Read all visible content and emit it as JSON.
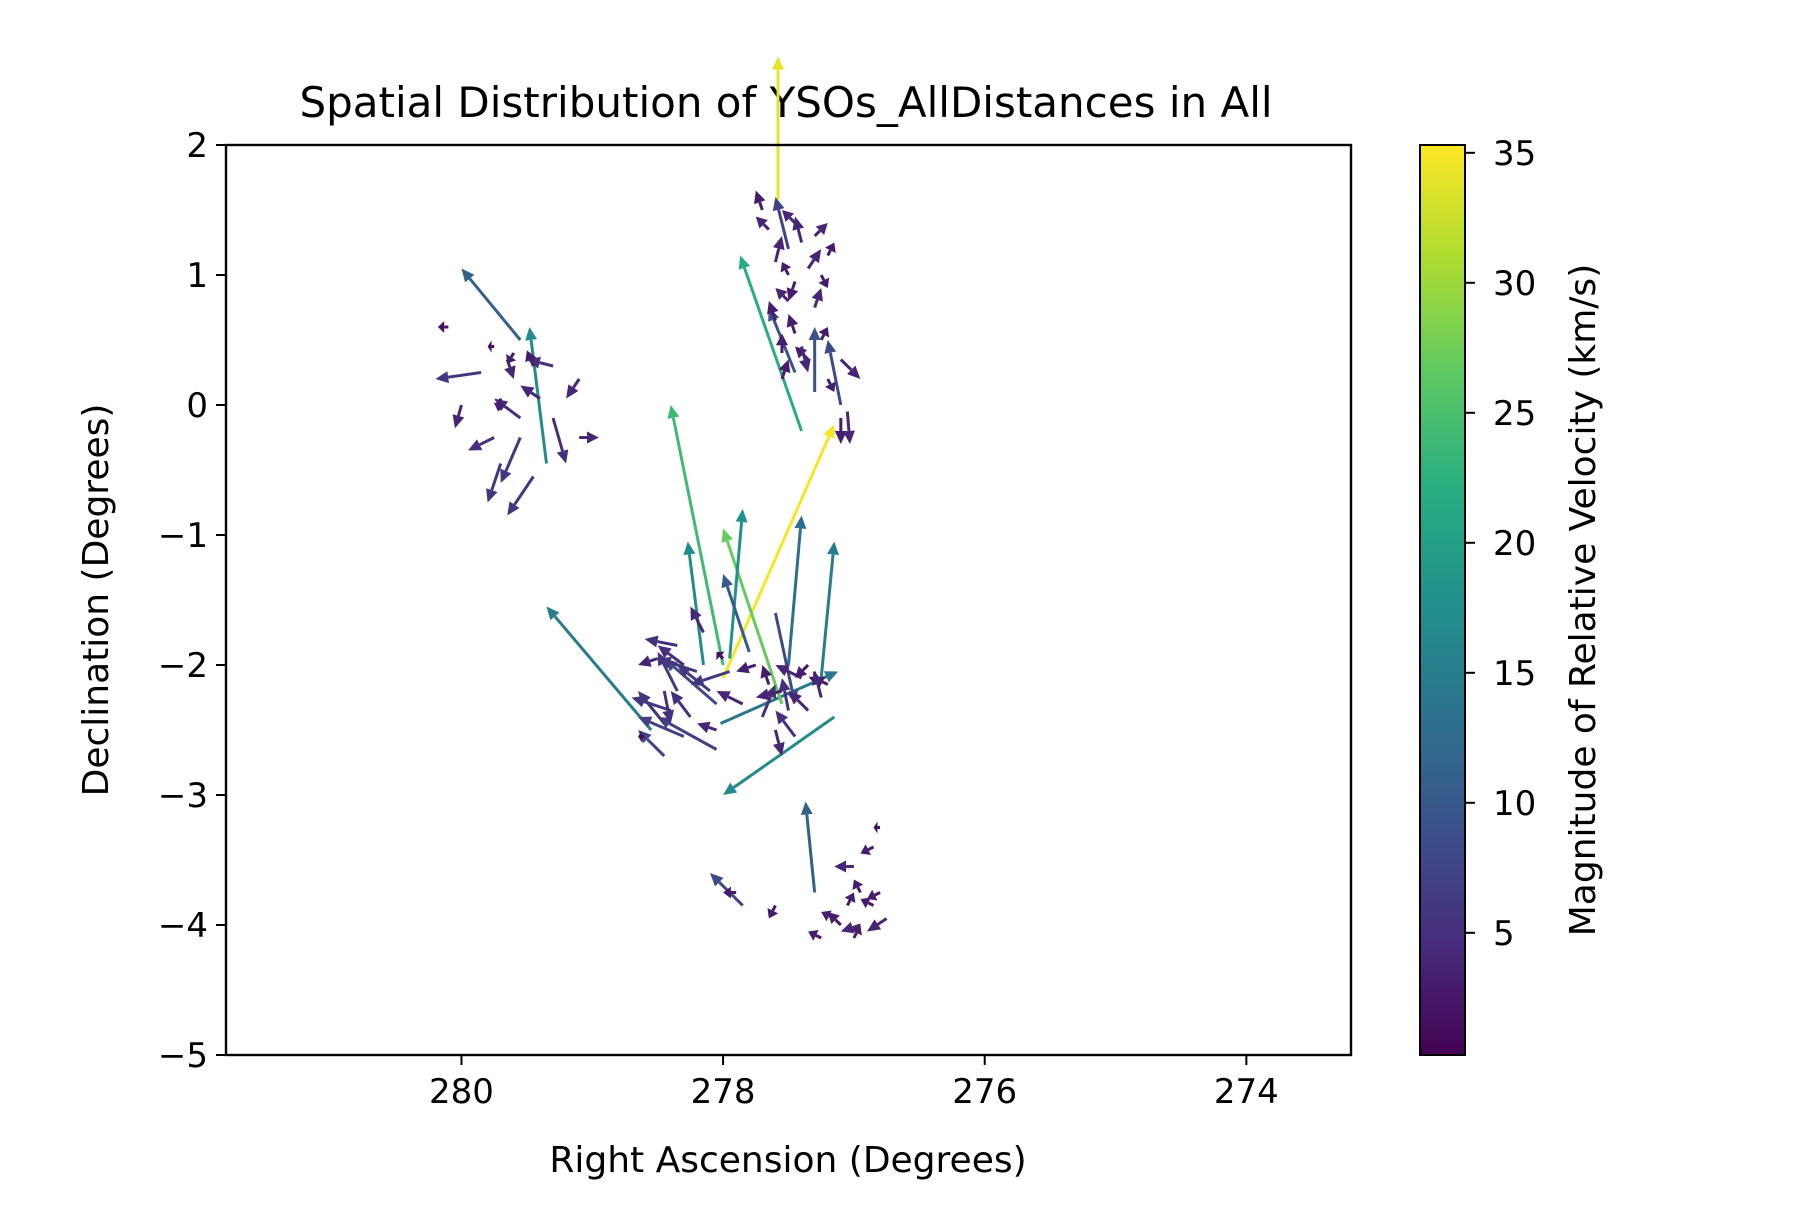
{
  "chart_data": {
    "type": "quiver",
    "title": "Spatial Distribution of YSOs_AllDistances in All",
    "xlabel": "Right Ascension (Degrees)",
    "ylabel": "Declination (Degrees)",
    "xlim": [
      281.8,
      273.2
    ],
    "ylim": [
      -5,
      2
    ],
    "x_ticks": [
      280,
      278,
      276,
      274
    ],
    "x_tick_labels": [
      "280",
      "278",
      "276",
      "274"
    ],
    "y_ticks": [
      2,
      1,
      0,
      -1,
      -2,
      -3,
      -4,
      -5
    ],
    "y_tick_labels": [
      "2",
      "1",
      "0",
      "−1",
      "−2",
      "−3",
      "−4",
      "−5"
    ],
    "grid": false,
    "colorbar": {
      "label": "Magnitude of Relative Velocity (km/s)",
      "range": [
        0.3,
        35.3
      ],
      "ticks": [
        5,
        10,
        15,
        20,
        25,
        30,
        35
      ],
      "tick_labels": [
        "5",
        "10",
        "15",
        "20",
        "25",
        "30",
        "35"
      ],
      "colormap": "viridis",
      "colors": [
        "#440154",
        "#472d7b",
        "#3b528b",
        "#2c728e",
        "#21918c",
        "#28ae80",
        "#5ec962",
        "#addc30",
        "#fde725"
      ]
    },
    "arrows": [
      {
        "x": 277.58,
        "y": 1.58,
        "u": 0.0,
        "v": 1.1,
        "speed": 34
      },
      {
        "x": 277.3,
        "y": -2.05,
        "u": 0.0,
        "v": -0.1,
        "speed": 2
      },
      {
        "x": 278.0,
        "y": -2.1,
        "u": -0.85,
        "v": 1.95,
        "speed": 35
      },
      {
        "x": 278.0,
        "y": -2.0,
        "u": 0.4,
        "v": 2.0,
        "speed": 24
      },
      {
        "x": 278.02,
        "y": -2.45,
        "u": -0.9,
        "v": 0.4,
        "speed": 14
      },
      {
        "x": 277.55,
        "y": -2.3,
        "u": 0.45,
        "v": 1.35,
        "speed": 27
      },
      {
        "x": 277.4,
        "y": -0.2,
        "u": 0.47,
        "v": 1.35,
        "speed": 22
      },
      {
        "x": 279.35,
        "y": -0.45,
        "u": 0.13,
        "v": 1.05,
        "speed": 17
      },
      {
        "x": 279.55,
        "y": 0.5,
        "u": 0.45,
        "v": 0.55,
        "speed": 11
      },
      {
        "x": 278.55,
        "y": -2.5,
        "u": 0.8,
        "v": 0.95,
        "speed": 15
      },
      {
        "x": 277.95,
        "y": -1.95,
        "u": -0.1,
        "v": 1.15,
        "speed": 18
      },
      {
        "x": 278.15,
        "y": -2.0,
        "u": 0.12,
        "v": 0.95,
        "speed": 17
      },
      {
        "x": 277.25,
        "y": -2.1,
        "u": -0.1,
        "v": 1.05,
        "speed": 15
      },
      {
        "x": 277.5,
        "y": -2.0,
        "u": -0.1,
        "v": 1.15,
        "speed": 13
      },
      {
        "x": 277.8,
        "y": -1.9,
        "u": 0.2,
        "v": 0.6,
        "speed": 10
      },
      {
        "x": 277.15,
        "y": -2.4,
        "u": 0.85,
        "v": -0.6,
        "speed": 17
      },
      {
        "x": 277.3,
        "y": -3.75,
        "u": 0.07,
        "v": 0.7,
        "speed": 11
      },
      {
        "x": 277.6,
        "y": -1.6,
        "u": -0.15,
        "v": -0.7,
        "speed": 8
      },
      {
        "x": 277.45,
        "y": 0.25,
        "u": 0.2,
        "v": 0.5,
        "speed": 9
      },
      {
        "x": 277.3,
        "y": 0.1,
        "u": 0.0,
        "v": 0.5,
        "speed": 9
      },
      {
        "x": 277.1,
        "y": 0.0,
        "u": 0.1,
        "v": 0.5,
        "speed": 8
      },
      {
        "x": 277.5,
        "y": 1.2,
        "u": 0.1,
        "v": 0.4,
        "speed": 7
      },
      {
        "x": 278.05,
        "y": -2.3,
        "u": 0.4,
        "v": 0.35,
        "speed": 8
      },
      {
        "x": 277.85,
        "y": -3.85,
        "u": 0.25,
        "v": 0.25,
        "speed": 8
      },
      {
        "x": 278.45,
        "y": -2.7,
        "u": 0.2,
        "v": 0.2,
        "speed": 8
      },
      {
        "x": 278.3,
        "y": -2.55,
        "u": 0.35,
        "v": 0.15,
        "speed": 7
      },
      {
        "x": 278.4,
        "y": -2.35,
        "u": 0.3,
        "v": 0.1,
        "speed": 6
      },
      {
        "x": 278.05,
        "y": -2.65,
        "u": 0.45,
        "v": 0.25,
        "speed": 7
      },
      {
        "x": 279.45,
        "y": -0.55,
        "u": 0.2,
        "v": -0.3,
        "speed": 6
      },
      {
        "x": 279.7,
        "y": -0.45,
        "u": 0.1,
        "v": -0.3,
        "speed": 6
      },
      {
        "x": 279.55,
        "y": -0.25,
        "u": 0.15,
        "v": -0.35,
        "speed": 6
      },
      {
        "x": 279.55,
        "y": -0.1,
        "u": 0.2,
        "v": 0.15,
        "speed": 5
      },
      {
        "x": 279.3,
        "y": 0.3,
        "u": 0.2,
        "v": 0.05,
        "speed": 5
      },
      {
        "x": 279.85,
        "y": 0.25,
        "u": 0.35,
        "v": -0.05,
        "speed": 6
      },
      {
        "x": 279.65,
        "y": 0.35,
        "u": -0.05,
        "v": -0.15,
        "speed": 4
      },
      {
        "x": 279.3,
        "y": -0.1,
        "u": -0.1,
        "v": -0.35,
        "speed": 5
      },
      {
        "x": 279.1,
        "y": -0.25,
        "u": -0.15,
        "v": 0.0,
        "speed": 4
      },
      {
        "x": 279.75,
        "y": -0.25,
        "u": 0.2,
        "v": -0.1,
        "speed": 5
      },
      {
        "x": 279.1,
        "y": 0.2,
        "u": 0.1,
        "v": -0.15,
        "speed": 4
      },
      {
        "x": 279.7,
        "y": 0.05,
        "u": 0.02,
        "v": -0.1,
        "speed": 3
      },
      {
        "x": 280.0,
        "y": 0.0,
        "u": 0.05,
        "v": -0.18,
        "speed": 4
      },
      {
        "x": 279.45,
        "y": 0.3,
        "u": 0.05,
        "v": 0.12,
        "speed": 3
      },
      {
        "x": 279.6,
        "y": 0.4,
        "u": 0.05,
        "v": -0.08,
        "speed": 3
      },
      {
        "x": 280.1,
        "y": 0.6,
        "u": 0.08,
        "v": 0.0,
        "speed": 2
      },
      {
        "x": 279.75,
        "y": 0.45,
        "u": 0.05,
        "v": 0.0,
        "speed": 2
      },
      {
        "x": 279.4,
        "y": 0.05,
        "u": 0.15,
        "v": 0.1,
        "speed": 4
      },
      {
        "x": 278.45,
        "y": -2.45,
        "u": 0.2,
        "v": 0.25,
        "speed": 6
      },
      {
        "x": 278.25,
        "y": -2.4,
        "u": 0.15,
        "v": 0.2,
        "speed": 5
      },
      {
        "x": 278.35,
        "y": -2.2,
        "u": 0.15,
        "v": 0.3,
        "speed": 6
      },
      {
        "x": 278.3,
        "y": -2.0,
        "u": 0.2,
        "v": 0.15,
        "speed": 5
      },
      {
        "x": 278.1,
        "y": -2.2,
        "u": 0.25,
        "v": 0.2,
        "speed": 6
      },
      {
        "x": 278.2,
        "y": -2.05,
        "u": 0.3,
        "v": 0.1,
        "speed": 6
      },
      {
        "x": 278.5,
        "y": -1.95,
        "u": 0.15,
        "v": -0.05,
        "speed": 4
      },
      {
        "x": 278.35,
        "y": -1.85,
        "u": 0.25,
        "v": 0.05,
        "speed": 5
      },
      {
        "x": 278.15,
        "y": -1.75,
        "u": 0.1,
        "v": 0.2,
        "speed": 4
      },
      {
        "x": 277.95,
        "y": -2.05,
        "u": 0.3,
        "v": -0.1,
        "speed": 6
      },
      {
        "x": 277.85,
        "y": -2.3,
        "u": 0.2,
        "v": 0.1,
        "speed": 4
      },
      {
        "x": 277.7,
        "y": -2.4,
        "u": -0.1,
        "v": 0.25,
        "speed": 5
      },
      {
        "x": 278.45,
        "y": -2.2,
        "u": -0.05,
        "v": -0.25,
        "speed": 5
      },
      {
        "x": 278.6,
        "y": -2.55,
        "u": 0.05,
        "v": 0.0,
        "speed": 2
      },
      {
        "x": 278.05,
        "y": -2.5,
        "u": 0.15,
        "v": 0.05,
        "speed": 4
      },
      {
        "x": 277.65,
        "y": -2.15,
        "u": 0.05,
        "v": 0.15,
        "speed": 3
      },
      {
        "x": 277.4,
        "y": -2.1,
        "u": 0.2,
        "v": 0.1,
        "speed": 4
      },
      {
        "x": 277.5,
        "y": -2.35,
        "u": 0.05,
        "v": 0.25,
        "speed": 5
      },
      {
        "x": 277.35,
        "y": -2.35,
        "u": 0.15,
        "v": 0.15,
        "speed": 4
      },
      {
        "x": 277.55,
        "y": -2.2,
        "u": 0.2,
        "v": -0.05,
        "speed": 4
      },
      {
        "x": 277.35,
        "y": -2.0,
        "u": 0.1,
        "v": -0.1,
        "speed": 3
      },
      {
        "x": 277.45,
        "y": -2.55,
        "u": 0.15,
        "v": 0.2,
        "speed": 5
      },
      {
        "x": 277.2,
        "y": -2.15,
        "u": 0.1,
        "v": 0.05,
        "speed": 3
      },
      {
        "x": 277.6,
        "y": -2.5,
        "u": -0.05,
        "v": -0.2,
        "speed": 4
      },
      {
        "x": 277.75,
        "y": -2.0,
        "u": 0.15,
        "v": -0.05,
        "speed": 3
      },
      {
        "x": 277.25,
        "y": -2.25,
        "u": 0.05,
        "v": 0.2,
        "speed": 4
      },
      {
        "x": 278.0,
        "y": -1.95,
        "u": 0.05,
        "v": 0.05,
        "speed": 2
      },
      {
        "x": 277.45,
        "y": 1.4,
        "u": 0.1,
        "v": 0.1,
        "speed": 4
      },
      {
        "x": 277.65,
        "y": 1.35,
        "u": 0.1,
        "v": 0.1,
        "speed": 4
      },
      {
        "x": 277.4,
        "y": 1.25,
        "u": 0.05,
        "v": 0.2,
        "speed": 4
      },
      {
        "x": 277.6,
        "y": 1.1,
        "u": -0.05,
        "v": 0.2,
        "speed": 4
      },
      {
        "x": 277.35,
        "y": 1.05,
        "u": -0.1,
        "v": 0.15,
        "speed": 4
      },
      {
        "x": 277.45,
        "y": 0.95,
        "u": 0.05,
        "v": -0.15,
        "speed": 3
      },
      {
        "x": 277.25,
        "y": 1.0,
        "u": -0.05,
        "v": -0.1,
        "speed": 3
      },
      {
        "x": 277.5,
        "y": 0.8,
        "u": 0.1,
        "v": 0.1,
        "speed": 4
      },
      {
        "x": 277.3,
        "y": 0.75,
        "u": -0.05,
        "v": 0.15,
        "speed": 4
      },
      {
        "x": 277.6,
        "y": 0.65,
        "u": 0.05,
        "v": 0.15,
        "speed": 3
      },
      {
        "x": 277.45,
        "y": 0.55,
        "u": 0.05,
        "v": 0.15,
        "speed": 3
      },
      {
        "x": 277.25,
        "y": 0.5,
        "u": -0.05,
        "v": 0.1,
        "speed": 3
      },
      {
        "x": 277.35,
        "y": 0.35,
        "u": 0.1,
        "v": 0.1,
        "speed": 3
      },
      {
        "x": 277.1,
        "y": 0.35,
        "u": -0.15,
        "v": -0.15,
        "speed": 4
      },
      {
        "x": 277.2,
        "y": 0.2,
        "u": -0.05,
        "v": -0.1,
        "speed": 3
      },
      {
        "x": 277.1,
        "y": -0.1,
        "u": 0.0,
        "v": -0.2,
        "speed": 3
      },
      {
        "x": 277.55,
        "y": 0.4,
        "u": 0.0,
        "v": 0.15,
        "speed": 3
      },
      {
        "x": 277.4,
        "y": 0.45,
        "u": -0.05,
        "v": -0.2,
        "speed": 4
      },
      {
        "x": 277.7,
        "y": 1.5,
        "u": 0.05,
        "v": 0.15,
        "speed": 3
      },
      {
        "x": 277.05,
        "y": -0.05,
        "u": -0.02,
        "v": -0.25,
        "speed": 4
      },
      {
        "x": 277.3,
        "y": 1.3,
        "u": -0.1,
        "v": 0.1,
        "speed": 4
      },
      {
        "x": 277.55,
        "y": 0.2,
        "u": -0.05,
        "v": 0.15,
        "speed": 3
      },
      {
        "x": 277.2,
        "y": 1.15,
        "u": -0.05,
        "v": 0.1,
        "speed": 3
      },
      {
        "x": 277.5,
        "y": 1.0,
        "u": 0.05,
        "v": 0.1,
        "speed": 3
      },
      {
        "x": 276.85,
        "y": -3.85,
        "u": 0.1,
        "v": 0.05,
        "speed": 3
      },
      {
        "x": 276.95,
        "y": -4.0,
        "u": 0.15,
        "v": -0.05,
        "speed": 4
      },
      {
        "x": 277.1,
        "y": -4.0,
        "u": 0.1,
        "v": 0.1,
        "speed": 3
      },
      {
        "x": 277.25,
        "y": -4.1,
        "u": 0.1,
        "v": 0.05,
        "speed": 3
      },
      {
        "x": 276.95,
        "y": -3.75,
        "u": 0.05,
        "v": 0.1,
        "speed": 3
      },
      {
        "x": 276.8,
        "y": -3.75,
        "u": 0.1,
        "v": -0.05,
        "speed": 3
      },
      {
        "x": 277.05,
        "y": -3.85,
        "u": -0.05,
        "v": 0.1,
        "speed": 3
      },
      {
        "x": 277.15,
        "y": -3.95,
        "u": 0.1,
        "v": 0.05,
        "speed": 3
      },
      {
        "x": 276.75,
        "y": -3.95,
        "u": 0.15,
        "v": -0.1,
        "speed": 4
      },
      {
        "x": 277.0,
        "y": -4.1,
        "u": -0.05,
        "v": 0.1,
        "speed": 3
      },
      {
        "x": 276.85,
        "y": -3.4,
        "u": 0.1,
        "v": -0.05,
        "speed": 3
      },
      {
        "x": 277.0,
        "y": -3.55,
        "u": 0.15,
        "v": 0.0,
        "speed": 4
      },
      {
        "x": 276.8,
        "y": -3.25,
        "u": 0.05,
        "v": 0.0,
        "speed": 2
      },
      {
        "x": 277.6,
        "y": -3.85,
        "u": 0.05,
        "v": -0.1,
        "speed": 3
      },
      {
        "x": 277.9,
        "y": -3.75,
        "u": 0.1,
        "v": 0.0,
        "speed": 3
      }
    ]
  }
}
